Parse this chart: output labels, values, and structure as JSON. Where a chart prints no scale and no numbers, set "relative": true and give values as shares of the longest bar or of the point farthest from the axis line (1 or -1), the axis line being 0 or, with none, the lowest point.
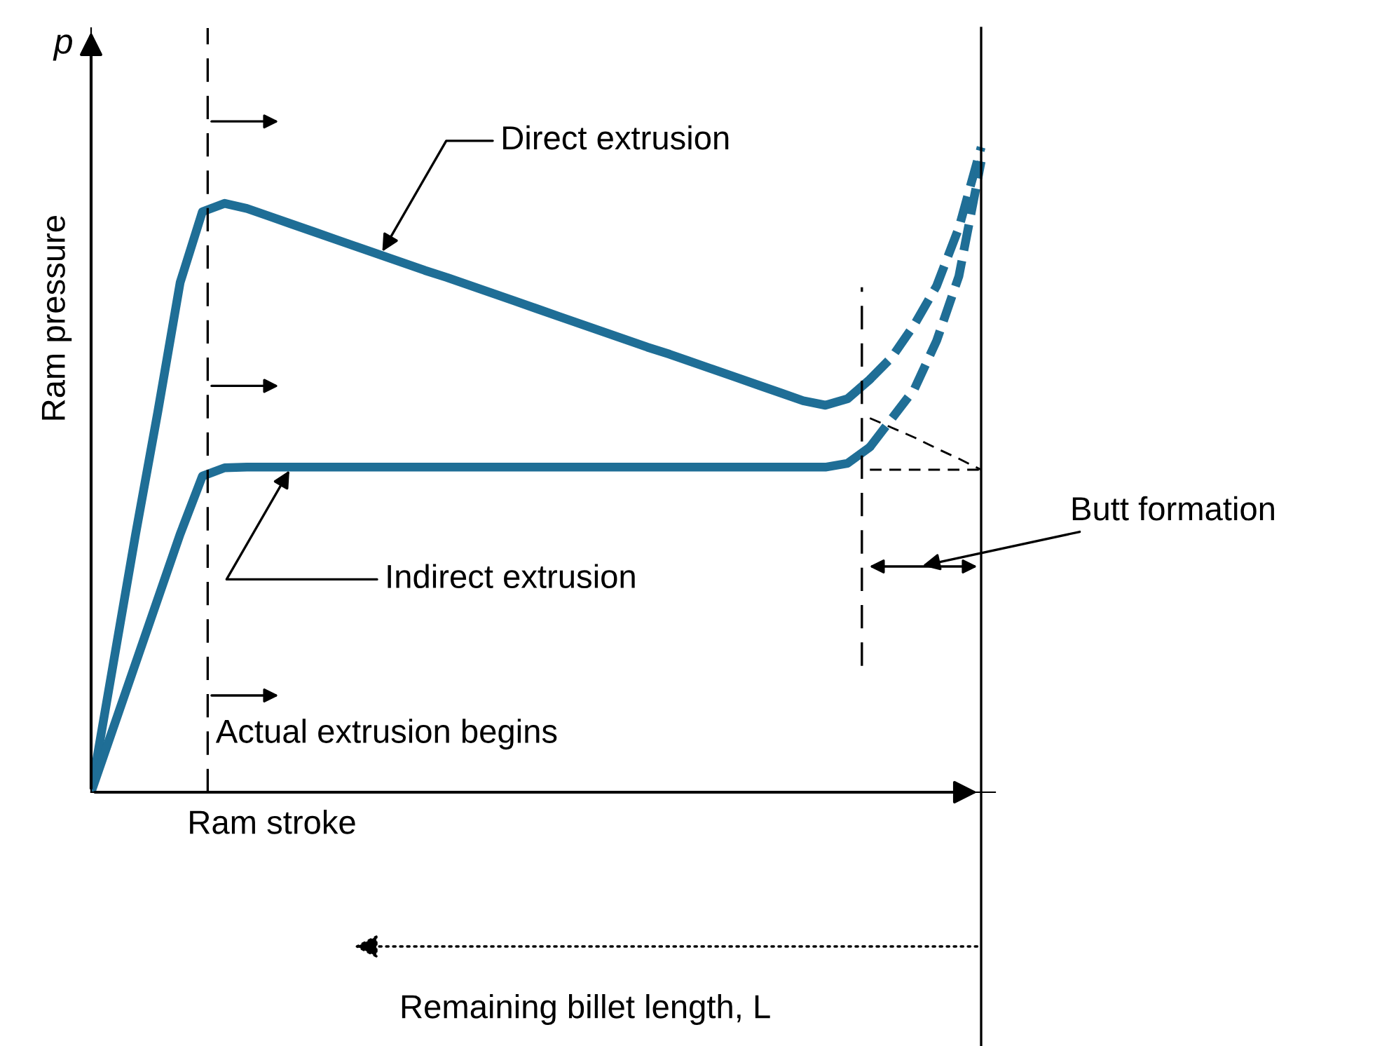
{
  "chart_data": {
    "type": "line",
    "relative": true,
    "xlabel": "Ram stroke",
    "ylabel": "Ram pressure",
    "legend": false,
    "marker": "none",
    "categories": [
      null,
      null,
      null,
      null,
      null,
      null,
      null,
      null,
      null,
      null,
      null,
      null,
      null,
      null,
      null,
      null,
      null,
      null,
      null,
      null,
      null,
      null,
      null,
      null,
      null,
      null,
      null,
      null,
      null,
      null,
      null,
      null,
      null,
      null,
      null,
      null,
      null,
      null,
      null,
      null,
      null
    ],
    "series": [
      {
        "name": "Direct extrusion",
        "color": "#1f6e96",
        "line_style": "solid",
        "values": [
          0,
          0.2,
          0.4,
          0.59,
          0.79,
          0.9,
          0.913,
          0.905,
          0.893,
          0.881,
          0.869,
          0.857,
          0.845,
          0.833,
          0.821,
          0.809,
          0.798,
          0.786,
          0.774,
          0.762,
          0.75,
          0.738,
          0.726,
          0.714,
          0.702,
          0.69,
          0.679,
          0.667,
          0.655,
          0.643,
          0.631,
          0.619,
          0.607,
          0.6,
          0.61,
          0.64,
          null,
          null,
          null,
          null,
          null
        ]
      },
      {
        "color": "#1f6e96",
        "line_style": "dashed",
        "values": [
          null,
          null,
          null,
          null,
          null,
          null,
          null,
          null,
          null,
          null,
          null,
          null,
          null,
          null,
          null,
          null,
          null,
          null,
          null,
          null,
          null,
          null,
          null,
          null,
          null,
          null,
          null,
          null,
          null,
          null,
          null,
          null,
          null,
          null,
          null,
          0.64,
          0.675,
          0.725,
          0.785,
          0.875,
          1
        ]
      },
      {
        "name": "Indirect extrusion",
        "color": "#1f6e96",
        "line_style": "solid",
        "values": [
          0,
          0.1,
          0.2,
          0.3,
          0.4,
          0.49,
          0.503,
          0.504,
          0.504,
          0.504,
          0.504,
          0.504,
          0.504,
          0.504,
          0.504,
          0.504,
          0.504,
          0.504,
          0.504,
          0.504,
          0.504,
          0.504,
          0.504,
          0.504,
          0.504,
          0.504,
          0.504,
          0.504,
          0.504,
          0.504,
          0.504,
          0.504,
          0.504,
          0.504,
          0.51,
          0.535,
          null,
          null,
          null,
          null,
          null
        ]
      },
      {
        "color": "#1f6e96",
        "line_style": "dashed",
        "values": [
          null,
          null,
          null,
          null,
          null,
          null,
          null,
          null,
          null,
          null,
          null,
          null,
          null,
          null,
          null,
          null,
          null,
          null,
          null,
          null,
          null,
          null,
          null,
          null,
          null,
          null,
          null,
          null,
          null,
          null,
          null,
          null,
          null,
          null,
          null,
          0.535,
          0.58,
          0.625,
          0.7,
          0.8,
          0.978
        ]
      },
      {
        "color": "#000000",
        "line_style": "dashed",
        "values": [
          null,
          null,
          null,
          null,
          null,
          null,
          null,
          null,
          null,
          null,
          null,
          null,
          null,
          null,
          null,
          null,
          null,
          null,
          null,
          null,
          null,
          null,
          null,
          null,
          null,
          null,
          null,
          null,
          null,
          null,
          null,
          null,
          null,
          null,
          null,
          0.58,
          0.565,
          0.55,
          0.533,
          0.517,
          0.5
        ]
      },
      {
        "color": "#000000",
        "line_style": "dashed",
        "values": [
          null,
          null,
          null,
          null,
          null,
          null,
          null,
          null,
          null,
          null,
          null,
          null,
          null,
          null,
          null,
          null,
          null,
          null,
          null,
          null,
          null,
          null,
          null,
          null,
          null,
          null,
          null,
          null,
          null,
          null,
          null,
          null,
          null,
          null,
          null,
          0.5,
          0.5,
          0.5,
          0.5,
          0.5,
          0.5
        ]
      }
    ],
    "grid": false,
    "annotations": [
      "Actual extrusion begins",
      "Butt formation",
      "Remaining billet length, L",
      "p"
    ]
  }
}
